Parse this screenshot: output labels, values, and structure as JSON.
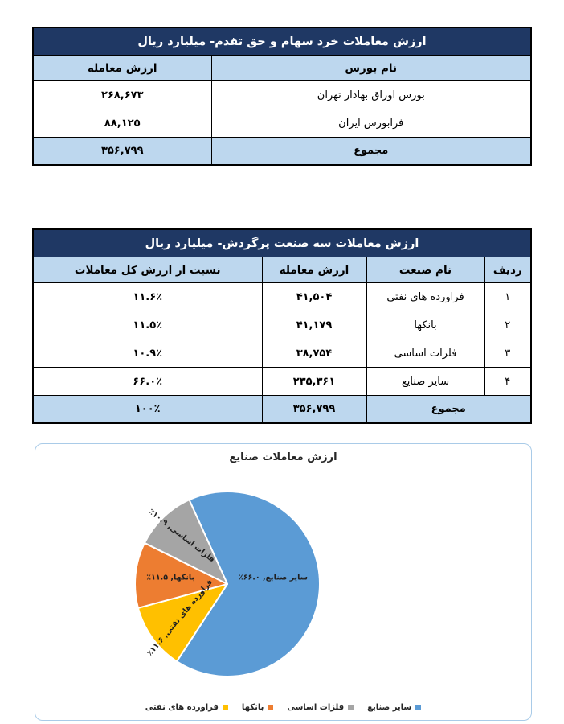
{
  "table1": {
    "title": "ارزش معاملات خرد سهام و حق تقدم- میلیارد ریال",
    "columns": {
      "name": "نام بورس",
      "value": "ارزش معامله"
    },
    "rows": [
      {
        "name": "بورس اوراق بهادار تهران",
        "value": "۲۶۸,۶۷۳"
      },
      {
        "name": "فرابورس ایران",
        "value": "۸۸,۱۲۵"
      }
    ],
    "total": {
      "label": "مجموع",
      "value": "۳۵۶,۷۹۹"
    }
  },
  "table2": {
    "title": "ارزش معاملات سه صنعت پرگردش- میلیارد ریال",
    "columns": {
      "row": "ردیف",
      "industry": "نام صنعت",
      "value": "ارزش معامله",
      "ratio": "نسبت از ارزش کل معاملات"
    },
    "rows": [
      {
        "row": "۱",
        "industry": "فراورده های نفتی",
        "value": "۴۱,۵۰۴",
        "ratio": "۱۱.۶٪"
      },
      {
        "row": "۲",
        "industry": "بانکها",
        "value": "۴۱,۱۷۹",
        "ratio": "۱۱.۵٪"
      },
      {
        "row": "۳",
        "industry": "فلزات اساسی",
        "value": "۳۸,۷۵۴",
        "ratio": "۱۰.۹٪"
      },
      {
        "row": "۴",
        "industry": "سایر صنایع",
        "value": "۲۳۵,۳۶۱",
        "ratio": "۶۶.۰٪"
      }
    ],
    "total": {
      "label": "مجموع",
      "value": "۳۵۶,۷۹۹",
      "ratio": "۱۰۰٪"
    }
  },
  "chart_data": {
    "type": "pie",
    "title": "ارزش معاملات صنایع",
    "start_angle_deg": -24.4,
    "legend_position": "bottom-center",
    "slices": [
      {
        "label": "سایر صنایع",
        "value": 66.0,
        "display": "سایر صنایع, ۶۶.۰٪",
        "color": "#5B9BD5",
        "label_angle": 82,
        "label_r": 0.5,
        "label_rotate": 0
      },
      {
        "label": "فراورده های نفتی",
        "value": 11.6,
        "display": "فراورده های نفتی, ۱۱.۶٪",
        "color": "#FFC000",
        "label_angle": 234.5,
        "label_r": 0.63,
        "label_rotate": -50
      },
      {
        "label": "بانکها",
        "value": 11.5,
        "display": "بانکها, ۱۱.۵٪",
        "color": "#ED7D31",
        "label_angle": 276.5,
        "label_r": 0.62,
        "label_rotate": 0
      },
      {
        "label": "فلزات اساسی",
        "value": 10.9,
        "display": "فلزات اساسی, ۱۰.۹٪",
        "color": "#A5A5A5",
        "label_angle": 316.5,
        "label_r": 0.72,
        "label_rotate": 38
      }
    ],
    "legend": [
      {
        "label": "سایر صنایع",
        "color": "#5B9BD5"
      },
      {
        "label": "فلزات اساسی",
        "color": "#A5A5A5"
      },
      {
        "label": "بانکها",
        "color": "#ED7D31"
      },
      {
        "label": "فراورده های نفتی",
        "color": "#FFC000"
      }
    ]
  },
  "colors": {
    "header_navy": "#1F3864",
    "light_blue": "#BDD7EE",
    "chart_border": "#A9CBE8"
  }
}
